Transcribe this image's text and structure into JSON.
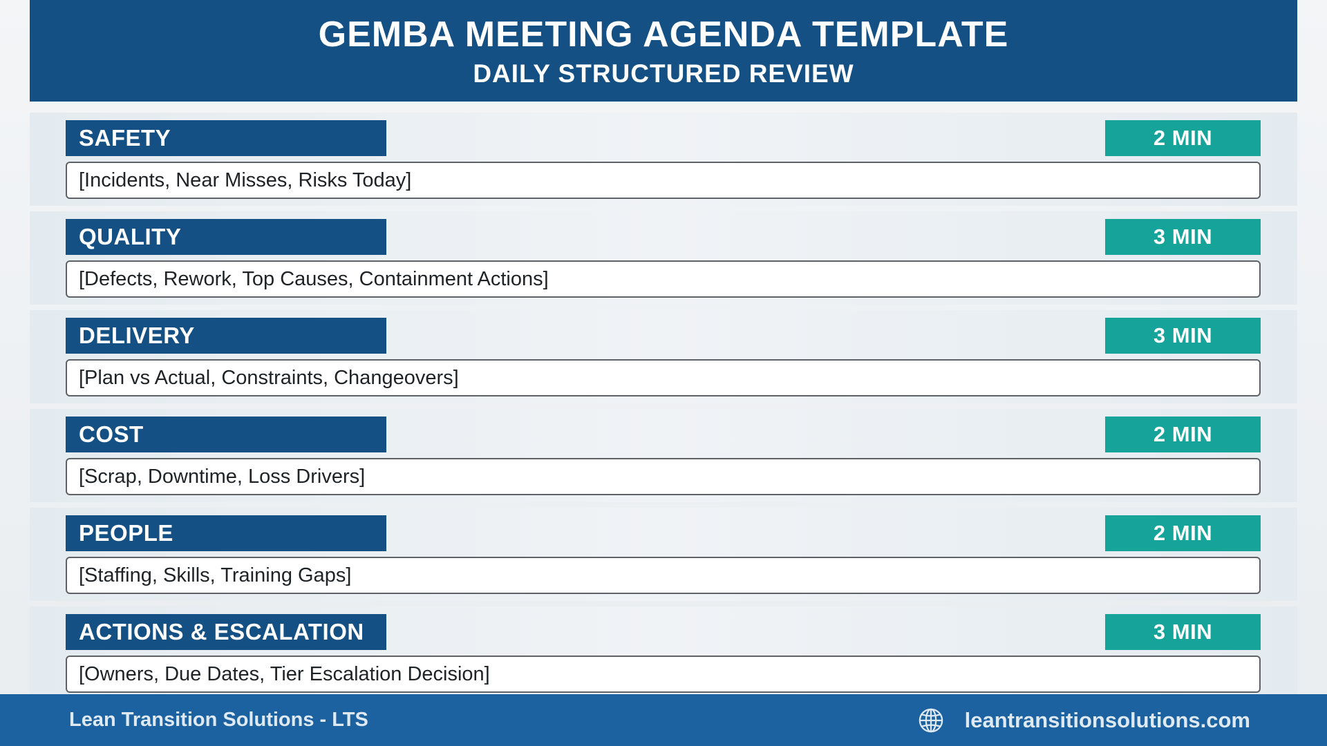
{
  "header": {
    "title": "GEMBA MEETING AGENDA TEMPLATE",
    "subtitle": "DAILY STRUCTURED REVIEW"
  },
  "sections": [
    {
      "title": "SAFETY",
      "time": "2 MIN",
      "field": "[Incidents, Near Misses, Risks Today]"
    },
    {
      "title": "QUALITY",
      "time": "3 MIN",
      "field": "[Defects, Rework, Top Causes, Containment Actions]"
    },
    {
      "title": "DELIVERY",
      "time": "3 MIN",
      "field": "[Plan vs Actual, Constraints, Changeovers]"
    },
    {
      "title": "COST",
      "time": "2 MIN",
      "field": "[Scrap, Downtime, Loss Drivers]"
    },
    {
      "title": "PEOPLE",
      "time": "2 MIN",
      "field": "[Staffing, Skills, Training Gaps]"
    },
    {
      "title": "ACTIONS & ESCALATION",
      "time": "3 MIN",
      "field": "[Owners, Due Dates, Tier Escalation Decision]"
    }
  ],
  "footer": {
    "company": "Lean Transition Solutions - LTS",
    "website": "leantransitionsolutions.com",
    "website_icon": "globe-icon"
  },
  "colors": {
    "primary": "#145083",
    "accent": "#15a39a",
    "footer": "#1c62a0"
  }
}
